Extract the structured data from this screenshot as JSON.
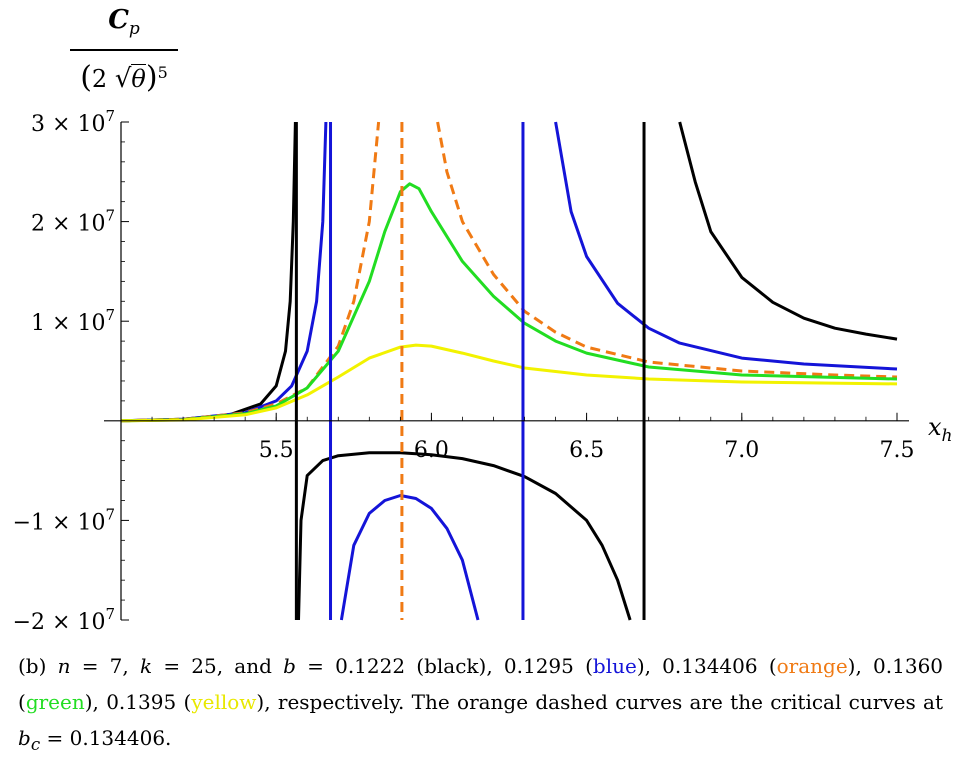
{
  "chart_data": {
    "type": "line",
    "xlabel": "x",
    "xlabel_sub": "h",
    "ylabel": {
      "numerator": "C",
      "numerator_sub": "p",
      "denominator_coef": "2",
      "denominator_var": "θ",
      "denominator_power": "5"
    },
    "xlim": [
      5.0,
      7.5
    ],
    "ylim": [
      -20000000,
      30000000
    ],
    "x_ticks": [
      {
        "value": 5.5,
        "label": "5.5"
      },
      {
        "value": 6.0,
        "label": "6.0"
      },
      {
        "value": 6.5,
        "label": "6.5"
      },
      {
        "value": 7.0,
        "label": "7.0"
      },
      {
        "value": 7.5,
        "label": "7.5"
      }
    ],
    "y_ticks": [
      {
        "value": 30000000,
        "label": "3 × 10",
        "exp": "7"
      },
      {
        "value": 20000000,
        "label": "2 × 10",
        "exp": "7"
      },
      {
        "value": 10000000,
        "label": "1 × 10",
        "exp": "7"
      },
      {
        "value": -10000000,
        "label": "−1 × 10",
        "exp": "7"
      },
      {
        "value": -20000000,
        "label": "−2 × 10",
        "exp": "7"
      }
    ],
    "series": [
      {
        "name": "b = 0.1222",
        "color": "#000000",
        "style": "solid",
        "vertical_asymptotes": [
          5.565,
          6.685
        ],
        "segments": [
          {
            "x": [
              5.0,
              5.2,
              5.35,
              5.45,
              5.5,
              5.53,
              5.545,
              5.555,
              5.562
            ],
            "y": [
              0,
              150000,
              600000,
              1700000,
              3500000,
              7000000,
              12000000,
              20000000,
              30000000
            ]
          },
          {
            "x": [
              5.572,
              5.58,
              5.6,
              5.65,
              5.7,
              5.8,
              5.9,
              6.0,
              6.1,
              6.2,
              6.3,
              6.4,
              6.5,
              6.55,
              6.6,
              6.64
            ],
            "y": [
              -20000000,
              -10000000,
              -5500000,
              -4000000,
              -3500000,
              -3200000,
              -3200000,
              -3400000,
              -3800000,
              -4500000,
              -5600000,
              -7300000,
              -10000000,
              -12500000,
              -16000000,
              -20000000
            ]
          },
          {
            "x": [
              6.8,
              6.85,
              6.9,
              7.0,
              7.1,
              7.2,
              7.3,
              7.4,
              7.5
            ],
            "y": [
              30000000,
              24000000,
              19000000,
              14400000,
              11900000,
              10300000,
              9300000,
              8700000,
              8200000
            ]
          }
        ]
      },
      {
        "name": "b = 0.1295",
        "color": "#1414d8",
        "style": "solid",
        "vertical_asymptotes": [
          5.675,
          6.295
        ],
        "segments": [
          {
            "x": [
              5.0,
              5.2,
              5.4,
              5.5,
              5.55,
              5.6,
              5.63,
              5.65,
              5.66
            ],
            "y": [
              0,
              150000,
              800000,
              2000000,
              3500000,
              7000000,
              12000000,
              20000000,
              30000000
            ]
          },
          {
            "x": [
              5.71,
              5.75,
              5.8,
              5.85,
              5.9,
              5.95,
              6.0,
              6.05,
              6.1,
              6.15
            ],
            "y": [
              -20000000,
              -12500000,
              -9300000,
              -8000000,
              -7500000,
              -7800000,
              -8800000,
              -10800000,
              -14000000,
              -20000000
            ]
          },
          {
            "x": [
              6.4,
              6.45,
              6.5,
              6.6,
              6.7,
              6.8,
              7.0,
              7.2,
              7.5
            ],
            "y": [
              30000000,
              21000000,
              16500000,
              11800000,
              9300000,
              7800000,
              6300000,
              5700000,
              5200000
            ]
          }
        ]
      },
      {
        "name": "b = 0.134406",
        "color": "#f07a14",
        "style": "dashed",
        "vertical_asymptotes": [
          5.905
        ],
        "segments": [
          {
            "x": [
              5.0,
              5.2,
              5.4,
              5.5,
              5.6,
              5.7,
              5.75,
              5.8,
              5.83
            ],
            "y": [
              0,
              150000,
              800000,
              1700000,
              3300000,
              7500000,
              12000000,
              20000000,
              30000000
            ]
          },
          {
            "x": [
              6.02,
              6.05,
              6.1,
              6.2,
              6.3,
              6.4,
              6.5,
              6.7,
              7.0,
              7.3,
              7.5
            ],
            "y": [
              30000000,
              25000000,
              20000000,
              14700000,
              11000000,
              8900000,
              7400000,
              5900000,
              5000000,
              4600000,
              4400000
            ]
          }
        ]
      },
      {
        "name": "b = 0.1360",
        "color": "#22dd22",
        "style": "solid",
        "vertical_asymptotes": [],
        "segments": [
          {
            "x": [
              5.0,
              5.2,
              5.4,
              5.5,
              5.6,
              5.7,
              5.8,
              5.85,
              5.9,
              5.93,
              5.96,
              6.0,
              6.1,
              6.2,
              6.3,
              6.4,
              6.5,
              6.7,
              7.0,
              7.5
            ],
            "y": [
              0,
              100000,
              700000,
              1500000,
              3300000,
              7000000,
              14000000,
              19000000,
              23000000,
              23800000,
              23300000,
              21000000,
              16000000,
              12500000,
              9800000,
              8000000,
              6800000,
              5400000,
              4600000,
              4200000
            ]
          }
        ]
      },
      {
        "name": "b = 0.1395",
        "color": "#f2f200",
        "style": "solid",
        "vertical_asymptotes": [],
        "segments": [
          {
            "x": [
              5.0,
              5.2,
              5.4,
              5.5,
              5.6,
              5.7,
              5.8,
              5.9,
              5.95,
              6.0,
              6.1,
              6.2,
              6.3,
              6.5,
              6.7,
              7.0,
              7.5
            ],
            "y": [
              0,
              80000,
              600000,
              1300000,
              2600000,
              4400000,
              6300000,
              7400000,
              7600000,
              7500000,
              6800000,
              6000000,
              5300000,
              4600000,
              4200000,
              3900000,
              3700000
            ]
          }
        ]
      }
    ]
  },
  "caption": {
    "prefix": "(b) ",
    "n_var": "n",
    "n_eq": " = 7, ",
    "k_var": "k",
    "k_eq": " = 25, and ",
    "b_var": "b",
    "b_eq": " = 0.1222 (black), 0.1295 (",
    "blue_word": "blue",
    "sep1": "), 0.134406 (",
    "orange_word": "orange",
    "sep2": "), 0.1360 (",
    "green_word": "green",
    "sep3": "), 0.1395 (",
    "yellow_word": "yellow",
    "sep4": "), respectively. The orange dashed curves are the critical curves at ",
    "bc_var": "b",
    "bc_sub": "c",
    "bc_eq": " = 0.134406."
  }
}
